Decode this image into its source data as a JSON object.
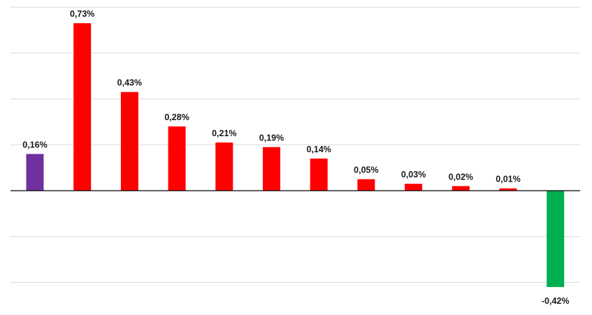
{
  "chart_data": {
    "type": "bar",
    "title": "",
    "xlabel": "",
    "ylabel": "",
    "ylim": [
      -0.4,
      0.8
    ],
    "y_tick_step": 0.2,
    "grid": true,
    "legend": "none",
    "values": [
      0.16,
      0.73,
      0.43,
      0.28,
      0.21,
      0.19,
      0.14,
      0.05,
      0.03,
      0.02,
      0.01,
      -0.42
    ],
    "labels": [
      "0,16%",
      "0,73%",
      "0,43%",
      "0,28%",
      "0,21%",
      "0,19%",
      "0,14%",
      "0,05%",
      "0,03%",
      "0,02%",
      "0,01%",
      "-0,42%"
    ],
    "bar_colors": [
      "#7030a0",
      "#ff0000",
      "#ff0000",
      "#ff0000",
      "#ff0000",
      "#ff0000",
      "#ff0000",
      "#ff0000",
      "#ff0000",
      "#ff0000",
      "#ff0000",
      "#00b050"
    ]
  }
}
